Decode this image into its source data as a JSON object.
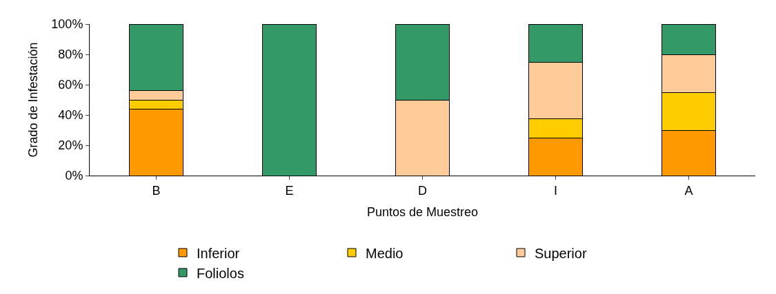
{
  "chart_data": {
    "type": "bar",
    "stacked": true,
    "xlabel": "Puntos de Muestreo",
    "ylabel": "Grado de Infestación",
    "categories": [
      "B",
      "E",
      "D",
      "I",
      "A"
    ],
    "series": [
      {
        "name": "Inferior",
        "color": "#ff9900",
        "values": [
          43.7,
          0,
          0,
          25,
          30
        ]
      },
      {
        "name": "Medio",
        "color": "#ffcc00",
        "values": [
          6.3,
          0,
          0,
          12.5,
          25
        ]
      },
      {
        "name": "Superior",
        "color": "#ffcc99",
        "values": [
          6.3,
          0,
          50,
          37.5,
          25
        ]
      },
      {
        "name": "Foliolos",
        "color": "#339966",
        "values": [
          43.7,
          100,
          50,
          25,
          20
        ]
      }
    ],
    "ylim": [
      0,
      100
    ],
    "yticks": [
      {
        "value": 0,
        "label": "0%"
      },
      {
        "value": 20,
        "label": "20%"
      },
      {
        "value": 40,
        "label": "40%"
      },
      {
        "value": 60,
        "label": "60%"
      },
      {
        "value": 80,
        "label": "80%"
      },
      {
        "value": 100,
        "label": "100%"
      }
    ],
    "legend": "bottom"
  }
}
